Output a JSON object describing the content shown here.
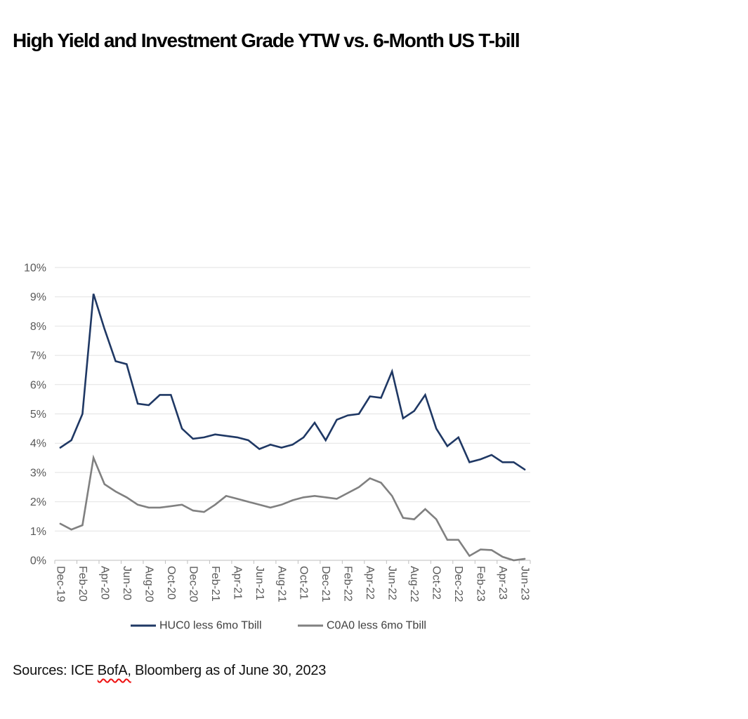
{
  "title": "High Yield and Investment Grade YTW vs. 6-Month US T-bill",
  "source": {
    "prefix": "Sources: ICE ",
    "flagged_word": "BofA,",
    "suffix": " Bloomberg as of June 30, 2023"
  },
  "colors": {
    "series_hy": "#1f3864",
    "series_ig": "#808080",
    "grid": "#e2e2e2",
    "axis": "#bfbfbf",
    "tick_label": "#595959",
    "legend_text": "#404040",
    "spellcheck": "#ee1111"
  },
  "legend": {
    "items": [
      {
        "label": "HUC0 less 6mo Tbill",
        "color": "#1f3864"
      },
      {
        "label": "C0A0 less 6mo Tbill",
        "color": "#808080"
      }
    ]
  },
  "y_axis": {
    "tick_labels": [
      "0%",
      "1%",
      "2%",
      "3%",
      "4%",
      "5%",
      "6%",
      "7%",
      "8%",
      "9%",
      "10%"
    ]
  },
  "x_axis": {
    "tick_labels": [
      "Dec-19",
      "Feb-20",
      "Apr-20",
      "Jun-20",
      "Aug-20",
      "Oct-20",
      "Dec-20",
      "Feb-21",
      "Apr-21",
      "Jun-21",
      "Aug-21",
      "Oct-21",
      "Dec-21",
      "Feb-22",
      "Apr-22",
      "Jun-22",
      "Aug-22",
      "Oct-22",
      "Dec-22",
      "Feb-23",
      "Apr-23",
      "Jun-23"
    ]
  },
  "chart_data": {
    "type": "line",
    "title": "High Yield and Investment Grade YTW vs. 6-Month US T-bill",
    "x": [
      "Dec-19",
      "Jan-20",
      "Feb-20",
      "Mar-20",
      "Apr-20",
      "May-20",
      "Jun-20",
      "Jul-20",
      "Aug-20",
      "Sep-20",
      "Oct-20",
      "Nov-20",
      "Dec-20",
      "Jan-21",
      "Feb-21",
      "Mar-21",
      "Apr-21",
      "May-21",
      "Jun-21",
      "Jul-21",
      "Aug-21",
      "Sep-21",
      "Oct-21",
      "Nov-21",
      "Dec-21",
      "Jan-22",
      "Feb-22",
      "Mar-22",
      "Apr-22",
      "May-22",
      "Jun-22",
      "Jul-22",
      "Aug-22",
      "Sep-22",
      "Oct-22",
      "Nov-22",
      "Dec-22",
      "Jan-23",
      "Feb-23",
      "Mar-23",
      "Apr-23",
      "May-23",
      "Jun-23"
    ],
    "series": [
      {
        "name": "HUC0 less 6mo Tbill",
        "color": "#1f3864",
        "values": [
          3.85,
          4.1,
          5.0,
          9.1,
          7.9,
          6.8,
          6.7,
          5.35,
          5.3,
          5.65,
          5.65,
          4.5,
          4.15,
          4.2,
          4.3,
          4.25,
          4.2,
          4.1,
          3.8,
          3.95,
          3.85,
          3.95,
          4.2,
          4.7,
          4.1,
          4.8,
          4.95,
          5.0,
          5.6,
          5.55,
          6.45,
          4.85,
          5.1,
          5.65,
          4.5,
          3.9,
          4.2,
          3.35,
          3.45,
          3.6,
          3.35,
          3.35,
          3.1
        ]
      },
      {
        "name": "C0A0 less 6mo Tbill",
        "color": "#808080",
        "values": [
          1.25,
          1.05,
          1.2,
          3.5,
          2.6,
          2.35,
          2.15,
          1.9,
          1.8,
          1.8,
          1.85,
          1.9,
          1.7,
          1.65,
          1.9,
          2.2,
          2.1,
          2.0,
          1.9,
          1.8,
          1.9,
          2.05,
          2.15,
          2.2,
          2.15,
          2.1,
          2.3,
          2.5,
          2.8,
          2.65,
          2.2,
          1.45,
          1.4,
          1.75,
          1.4,
          0.7,
          0.7,
          0.15,
          0.37,
          0.35,
          0.12,
          0.0,
          0.05
        ]
      }
    ],
    "ylim": [
      0,
      10
    ],
    "y_tick_interval": 1,
    "y_tick_suffix": "%",
    "xlabel": "",
    "ylabel": "",
    "grid": "horizontal",
    "legend_position": "bottom"
  }
}
